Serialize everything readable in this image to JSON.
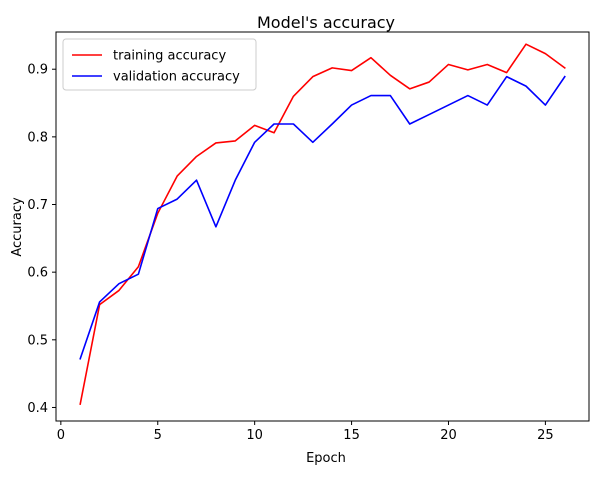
{
  "chart_data": {
    "type": "line",
    "title": "Model's accuracy",
    "xlabel": "Epoch",
    "ylabel": "Accuracy",
    "xlim": [
      -0.25,
      27.25
    ],
    "ylim": [
      0.38,
      0.955
    ],
    "xticks": [
      0,
      5,
      10,
      15,
      20,
      25
    ],
    "xtick_labels": [
      "0",
      "5",
      "10",
      "15",
      "20",
      "25"
    ],
    "yticks": [
      0.4,
      0.5,
      0.6,
      0.7,
      0.8,
      0.9
    ],
    "ytick_labels": [
      "0.4",
      "0.5",
      "0.6",
      "0.7",
      "0.8",
      "0.9"
    ],
    "grid": false,
    "legend_position": "top-left",
    "x": [
      1,
      2,
      3,
      4,
      5,
      6,
      7,
      8,
      9,
      10,
      11,
      12,
      13,
      14,
      15,
      16,
      17,
      18,
      19,
      20,
      21,
      22,
      23,
      24,
      25,
      26
    ],
    "series": [
      {
        "name": "training accuracy",
        "color": "#ff0000",
        "values": [
          0.405,
          0.552,
          0.573,
          0.608,
          0.687,
          0.742,
          0.771,
          0.791,
          0.794,
          0.817,
          0.806,
          0.86,
          0.889,
          0.902,
          0.898,
          0.917,
          0.891,
          0.871,
          0.881,
          0.907,
          0.899,
          0.907,
          0.895,
          0.937,
          0.923,
          0.902
        ]
      },
      {
        "name": "validation accuracy",
        "color": "#0000ff",
        "values": [
          0.472,
          0.556,
          0.583,
          0.597,
          0.694,
          0.708,
          0.736,
          0.667,
          0.736,
          0.792,
          0.819,
          0.819,
          0.792,
          0.819,
          0.847,
          0.861,
          0.861,
          0.819,
          0.833,
          0.847,
          0.861,
          0.847,
          0.889,
          0.875,
          0.847,
          0.889
        ]
      }
    ]
  }
}
